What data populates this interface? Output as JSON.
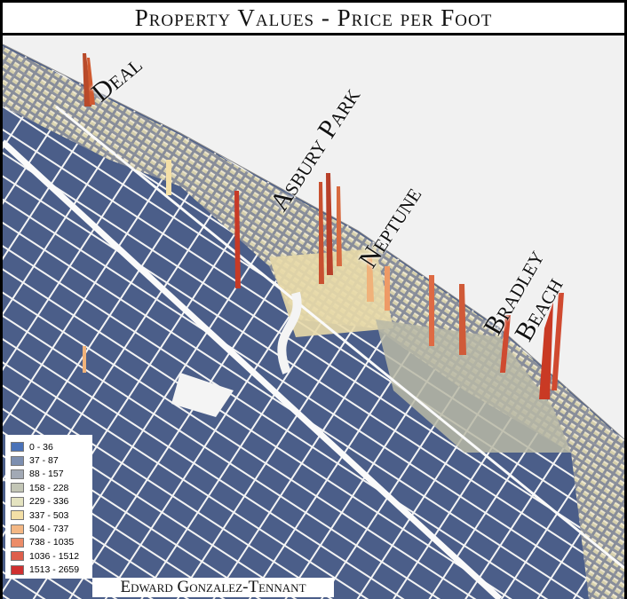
{
  "title": "Property Values - Price per Foot",
  "places": [
    {
      "label": "Deal"
    },
    {
      "label": "Asbury Park"
    },
    {
      "label": "Neptune"
    },
    {
      "label": "Bradley"
    },
    {
      "label": "Beach"
    }
  ],
  "legend": {
    "items": [
      {
        "label": "0 - 36",
        "color": "#4a72b8"
      },
      {
        "label": "37 - 87",
        "color": "#7d8fb0"
      },
      {
        "label": "88 - 157",
        "color": "#a2a9b5"
      },
      {
        "label": "158 - 228",
        "color": "#c3c6b6"
      },
      {
        "label": "229 - 336",
        "color": "#e4e3c0"
      },
      {
        "label": "337 - 503",
        "color": "#f3dfa6"
      },
      {
        "label": "504 - 737",
        "color": "#f3b784"
      },
      {
        "label": "738 - 1035",
        "color": "#ec8c68"
      },
      {
        "label": "1036 - 1512",
        "color": "#de5f4c"
      },
      {
        "label": "1513 - 2659",
        "color": "#cf3030"
      }
    ]
  },
  "credit": "Edward Gonzalez-Tennant"
}
